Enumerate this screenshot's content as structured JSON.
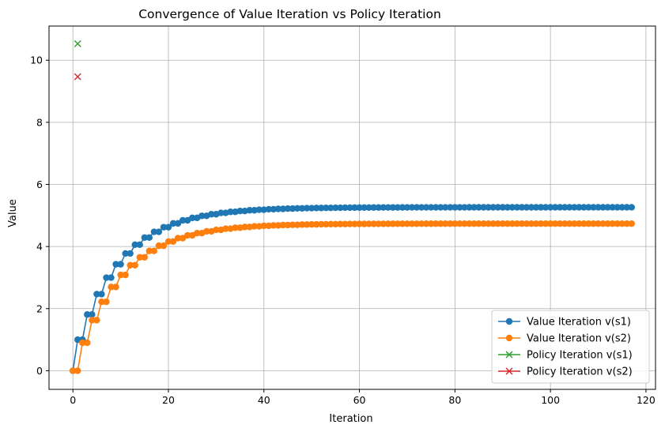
{
  "chart_data": {
    "type": "line",
    "title": "Convergence of Value Iteration vs Policy Iteration",
    "xlabel": "Iteration",
    "ylabel": "Value",
    "xlim": [
      -5,
      122
    ],
    "ylim": [
      -0.6,
      11.1
    ],
    "xticks": [
      0,
      20,
      40,
      60,
      80,
      100,
      120
    ],
    "xtick_labels": [
      "0",
      "20",
      "40",
      "60",
      "80",
      "100",
      "120"
    ],
    "yticks": [
      0,
      2,
      4,
      6,
      8,
      10
    ],
    "ytick_labels": [
      "0",
      "2",
      "4",
      "6",
      "8",
      "10"
    ],
    "grid": true,
    "legend_position": "lower right",
    "value_iteration": {
      "iterations": 118,
      "gamma": 0.9
    },
    "series": [
      {
        "name": "Value Iteration v(s1)",
        "color": "#1f77b4",
        "marker": "circle",
        "line": true
      },
      {
        "name": "Value Iteration v(s2)",
        "color": "#ff7f0e",
        "marker": "circle",
        "line": true
      },
      {
        "name": "Policy Iteration v(s1)",
        "color": "#2ca02c",
        "marker": "x",
        "line": false,
        "x": [
          1
        ],
        "y": [
          10.53
        ]
      },
      {
        "name": "Policy Iteration v(s2)",
        "color": "#d62728",
        "marker": "x",
        "line": false,
        "x": [
          1
        ],
        "y": [
          9.47
        ]
      }
    ]
  }
}
